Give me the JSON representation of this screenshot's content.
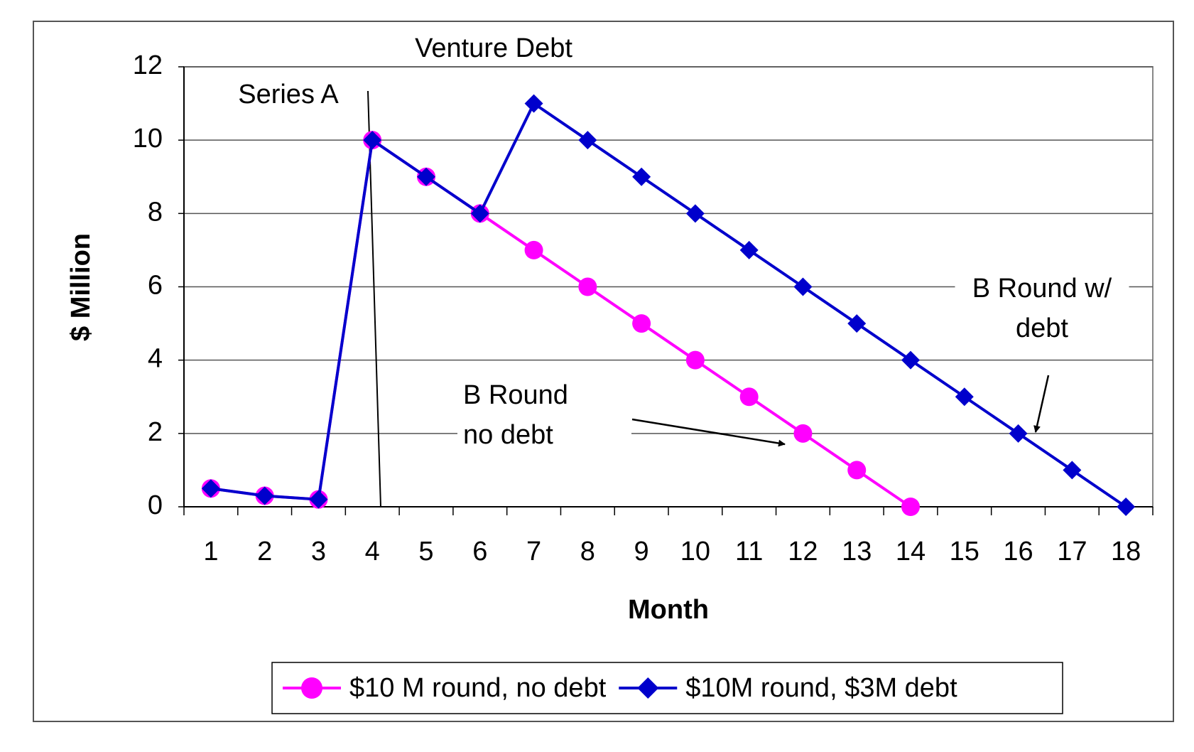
{
  "chart_data": {
    "type": "line",
    "x_label": "Month",
    "y_label": "$ Million",
    "categories": [
      1,
      2,
      3,
      4,
      5,
      6,
      7,
      8,
      9,
      10,
      11,
      12,
      13,
      14,
      15,
      16,
      17,
      18
    ],
    "series": [
      {
        "name": "$10 M round, no debt",
        "color": "#ff00ff",
        "marker": "circle",
        "values": [
          0.5,
          0.3,
          0.2,
          10,
          9,
          8,
          7,
          6,
          5,
          4,
          3,
          2,
          1,
          0,
          null,
          null,
          null,
          null
        ]
      },
      {
        "name": "$10M round, $3M debt",
        "color": "#0000cc",
        "marker": "diamond",
        "values": [
          0.5,
          0.3,
          0.2,
          10,
          9,
          8,
          11,
          10,
          9,
          8,
          7,
          6,
          5,
          4,
          3,
          2,
          1,
          0
        ]
      }
    ],
    "ylim": [
      0,
      12
    ],
    "yticks": [
      0,
      2,
      4,
      6,
      8,
      10,
      12
    ],
    "grid": true,
    "legend": "bottom",
    "annotations": [
      {
        "lines": [
          "Venture Debt"
        ]
      },
      {
        "lines": [
          "Series A"
        ]
      },
      {
        "lines": [
          "B Round",
          "no debt"
        ]
      },
      {
        "lines": [
          "B Round w/",
          "debt"
        ]
      }
    ]
  }
}
